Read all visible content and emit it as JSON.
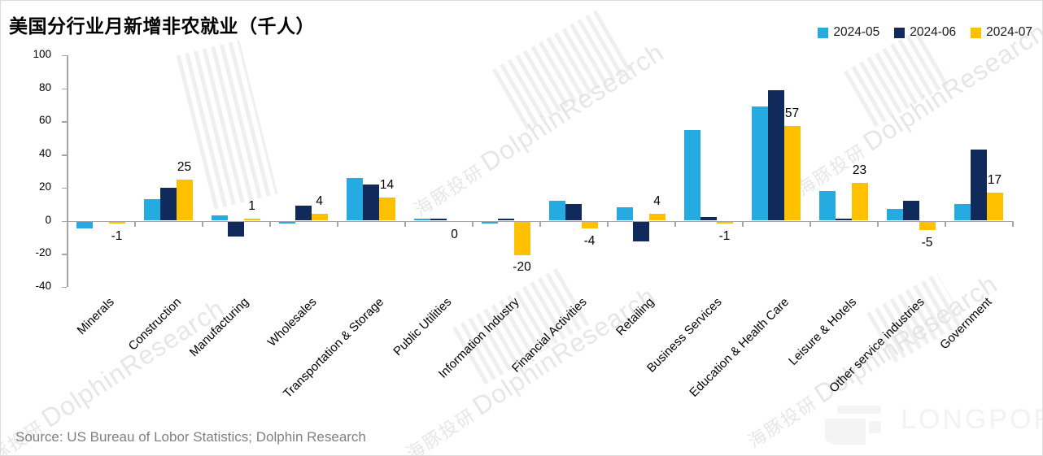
{
  "title": "美国分行业月新增非农就业（千人）",
  "source": "Source: US Bureau of Lobor Statistics; Dolphin Research",
  "watermark": {
    "cn": "海豚投研",
    "en": "DolphinResearch",
    "brand": "LONGPORT"
  },
  "colors": {
    "series_2024_05": "#25AAE1",
    "series_2024_06": "#112A5C",
    "series_2024_07": "#FFC000",
    "axis": "#A6A6A6",
    "label_text": "#000000",
    "source_text": "#7F7F7F",
    "watermark": "#DEDEDE"
  },
  "chart_data": {
    "type": "bar",
    "title": "美国分行业月新增非农就业（千人）",
    "xlabel": "",
    "ylabel": "",
    "ylim": [
      -40,
      100
    ],
    "yticks": [
      100,
      80,
      60,
      40,
      20,
      0,
      -20,
      -40
    ],
    "grid": false,
    "legend_position": "top-right",
    "categories": [
      "Minerals",
      "Construction",
      "Manufacturing",
      "Wholesales",
      "Transportation & Storage",
      "Public Utilities",
      "Information Industry",
      "Financial Activities",
      "Retailing",
      "Business Services",
      "Education & Health Care",
      "Leisure & Hotels",
      "Other service industries",
      "Government"
    ],
    "series": [
      {
        "name": "2024-05",
        "color": "#25AAE1",
        "values": [
          -4,
          13,
          3,
          -1,
          26,
          1,
          -1,
          12,
          8,
          55,
          69,
          18,
          7,
          10
        ]
      },
      {
        "name": "2024-06",
        "color": "#112A5C",
        "values": [
          0,
          20,
          -9,
          9,
          22,
          1,
          1,
          10,
          -12,
          2,
          79,
          1,
          12,
          43
        ]
      },
      {
        "name": "2024-07",
        "color": "#FFC000",
        "values": [
          -1,
          25,
          1,
          4,
          14,
          0,
          -20,
          -4,
          4,
          -1,
          57,
          23,
          -5,
          17
        ]
      }
    ],
    "data_labels_series": "2024-07",
    "data_labels": [
      "-1",
      "25",
      "1",
      "4",
      "14",
      "0",
      "-20",
      "-4",
      "4",
      "-1",
      "57",
      "23",
      "-5",
      "17"
    ]
  }
}
